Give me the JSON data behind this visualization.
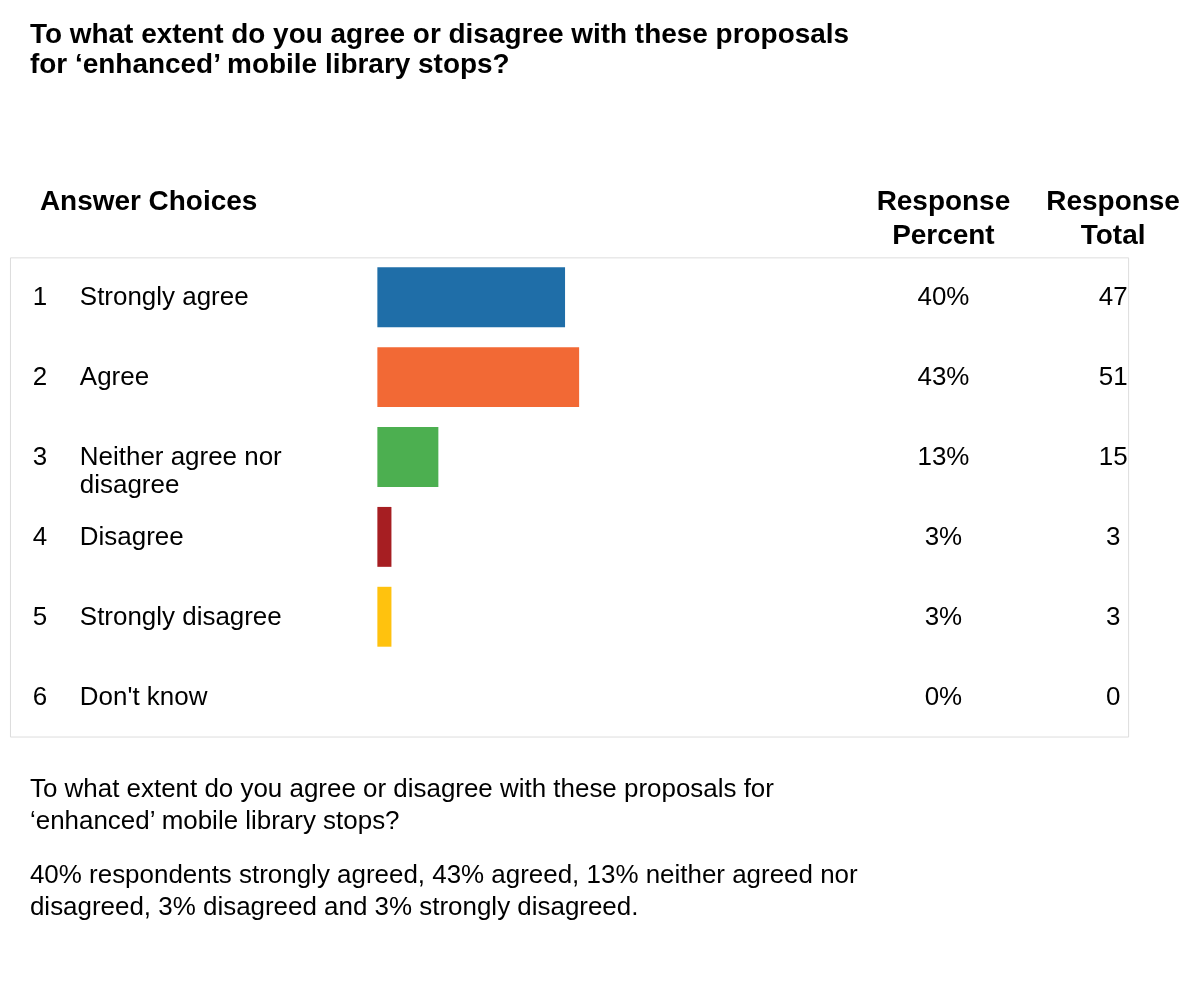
{
  "chart_data": {
    "type": "bar",
    "orientation": "horizontal",
    "title": "To what extent do you agree or disagree with these proposals for ‘enhanced’ mobile library stops?",
    "categories": [
      "Strongly agree",
      "Agree",
      "Neither agree nor disagree",
      "Disagree",
      "Strongly disagree",
      "Don't know"
    ],
    "values": [
      40,
      43,
      13,
      3,
      3,
      0
    ],
    "colors": [
      "#1f6ea8",
      "#f26935",
      "#4caf50",
      "#a61e22",
      "#ffc20e",
      "#cccccc"
    ],
    "value_labels": [
      "40%",
      "43%",
      "13%",
      "3%",
      "3%",
      "0%"
    ],
    "annotations": [
      "Answer Choices",
      "Response Percent",
      "Response Total",
      "1",
      "2",
      "3",
      "4",
      "5",
      "6",
      "47",
      "51",
      "15",
      "3",
      "3",
      "0",
      "To what extent do you agree or disagree with these proposals for ‘enhanced’ mobile library stops?",
      "40% respondents strongly agreed, 43% agreed, 13% neither agreed nor disagreed, 3% disagreed and 3% strongly disagreed."
    ]
  }
}
